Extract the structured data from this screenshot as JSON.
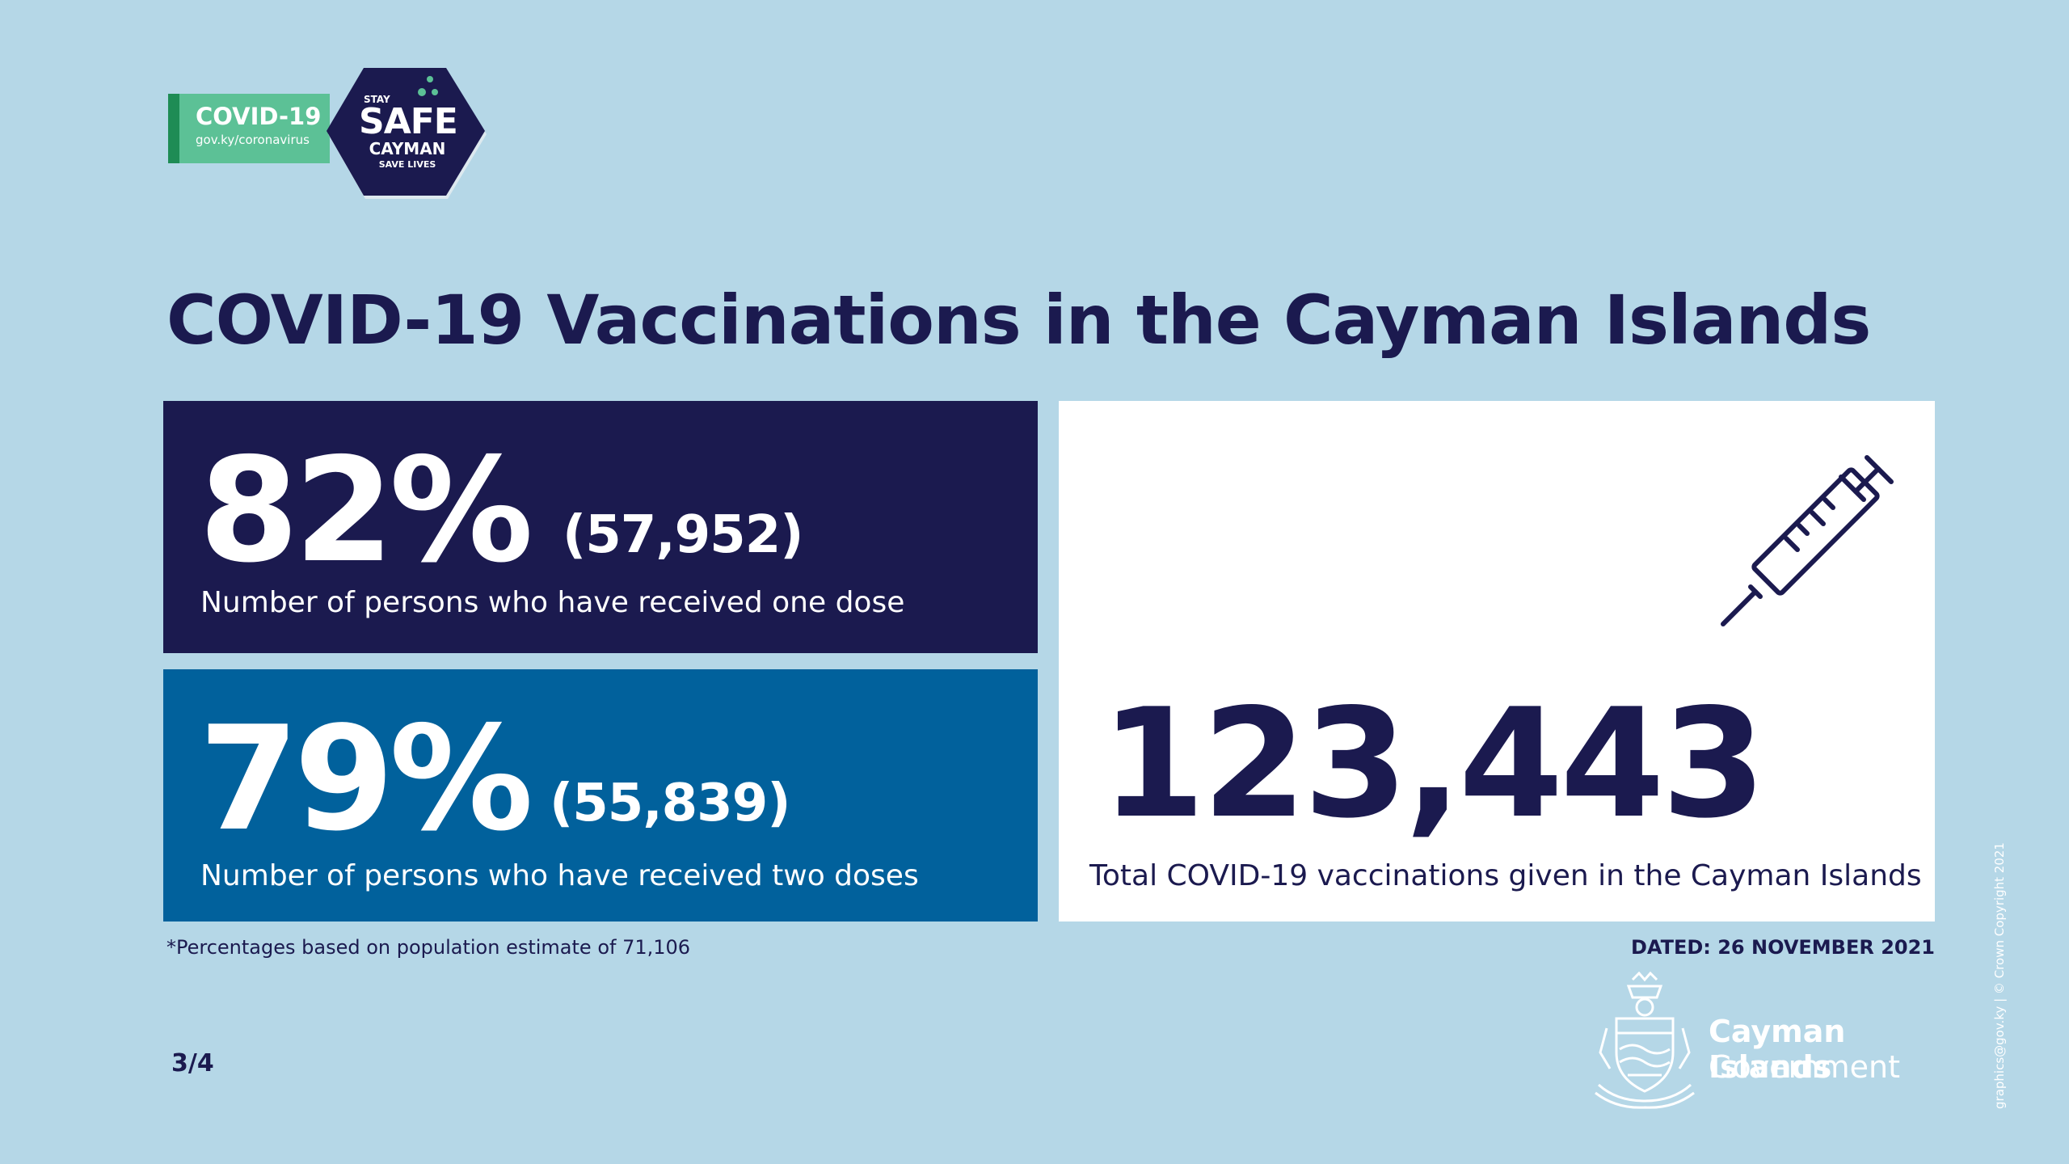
{
  "colors": {
    "background": "#b5d7e7",
    "navy": "#1b1a4f",
    "blue": "#01619c",
    "green": "#5cc196",
    "white": "#ffffff"
  },
  "badge": {
    "title": "COVID-19",
    "url": "gov.ky/coronavirus",
    "stay": "STAY",
    "safe": "SAFE",
    "cayman": "CAYMAN",
    "save_lives": "SAVE LIVES"
  },
  "title": "COVID-19 Vaccinations in the Cayman Islands",
  "one_dose": {
    "percent": "82%",
    "count": "(57,952)",
    "description": "Number of persons who have received one dose"
  },
  "two_doses": {
    "percent": "79%",
    "count": "(55,839)",
    "description": "Number of persons who have received two doses"
  },
  "total": {
    "icon": "syringe-icon",
    "number": "123,443",
    "description": "Total COVID-19 vaccinations given in the Cayman Islands"
  },
  "footnote": "*Percentages based on population estimate of 71,106",
  "dated": "DATED: 26 NOVEMBER 2021",
  "page_number": "3/4",
  "government": {
    "name": "Cayman Islands",
    "sub": "Government"
  },
  "credit": "graphics@gov.ky | © Crown Copyright 2021"
}
